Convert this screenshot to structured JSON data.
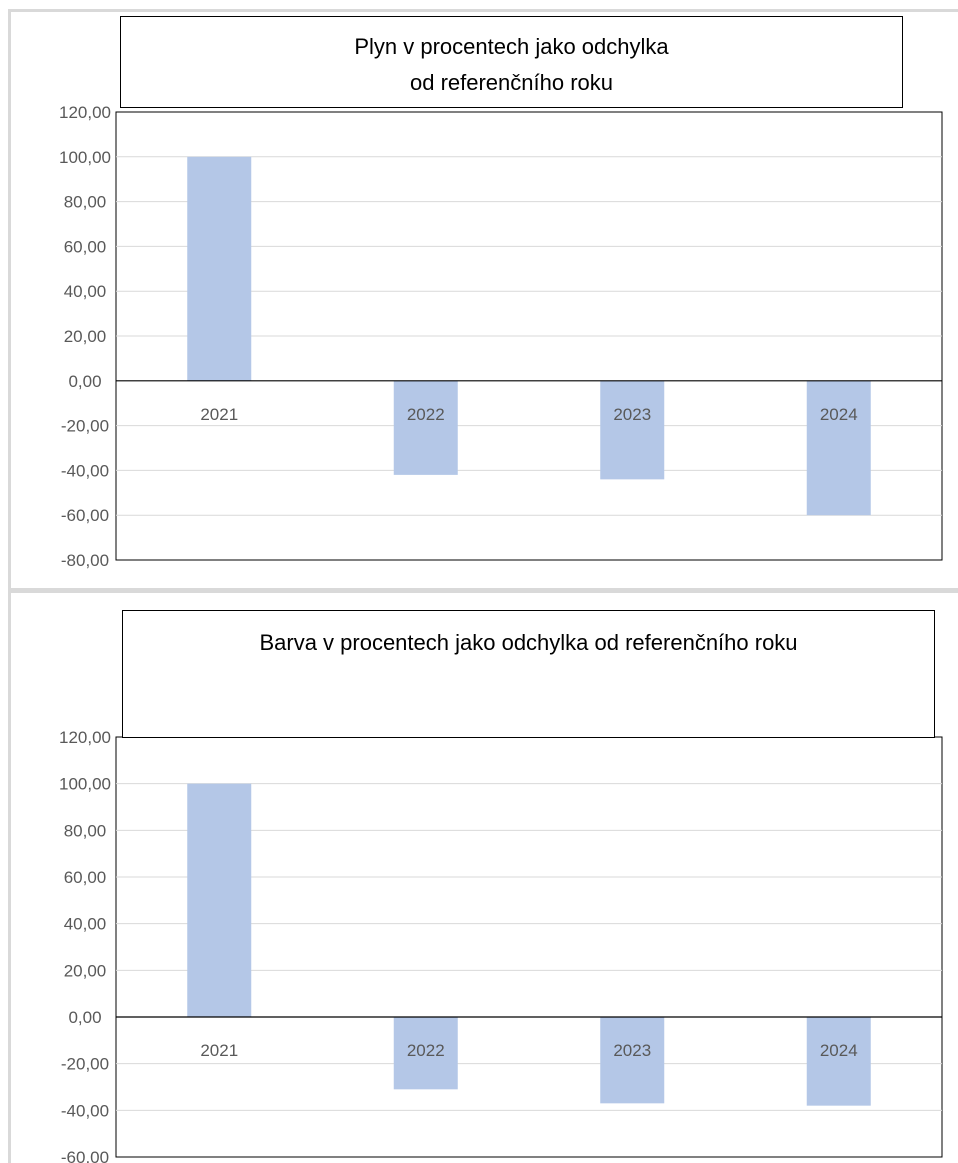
{
  "chart_data": [
    {
      "type": "bar",
      "title_lines": [
        "Plyn v procentech jako odchylka",
        "od referenčního roku"
      ],
      "categories": [
        "2021",
        "2022",
        "2023",
        "2024"
      ],
      "values": [
        100.0,
        -42.0,
        -44.0,
        -60.0
      ],
      "ylim": [
        -80,
        120
      ],
      "yticks": [
        "120,00",
        "100,00",
        "80,00",
        "60,00",
        "40,00",
        "20,00",
        "0,00",
        "-20,00",
        "-40,00",
        "-60,00",
        "-80,00"
      ],
      "grid": true,
      "legend": "none",
      "bar_color": "#b4c7e7"
    },
    {
      "type": "bar",
      "title_lines": [
        "Barva v procentech jako odchylka od referenčního roku"
      ],
      "categories": [
        "2021",
        "2022",
        "2023",
        "2024"
      ],
      "values": [
        100.0,
        -31.0,
        -37.0,
        -38.0
      ],
      "ylim": [
        -60,
        120
      ],
      "yticks": [
        "120,00",
        "100,00",
        "80,00",
        "60,00",
        "40,00",
        "20,00",
        "0,00",
        "-20,00",
        "-40,00",
        "-60,00"
      ],
      "grid": true,
      "legend": "none",
      "bar_color": "#b4c7e7"
    }
  ]
}
